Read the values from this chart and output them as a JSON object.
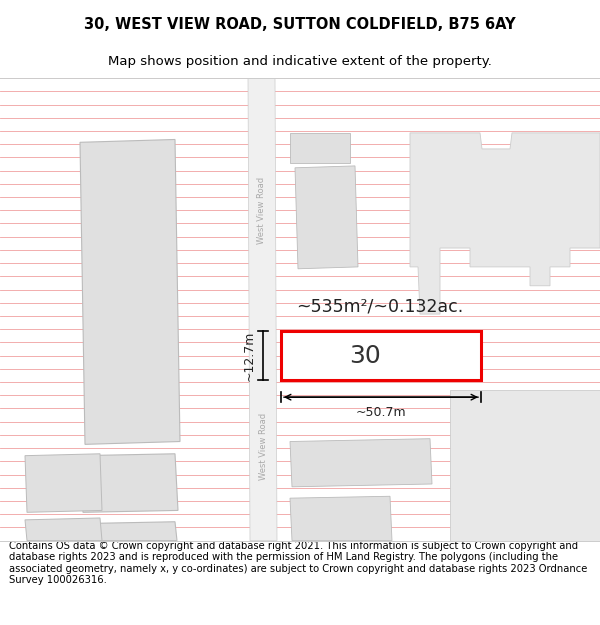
{
  "title_line1": "30, WEST VIEW ROAD, SUTTON COLDFIELD, B75 6AY",
  "title_line2": "Map shows position and indicative extent of the property.",
  "footer_text": "Contains OS data © Crown copyright and database right 2021. This information is subject to Crown copyright and database rights 2023 and is reproduced with the permission of HM Land Registry. The polygons (including the associated geometry, namely x, y co-ordinates) are subject to Crown copyright and database rights 2023 Ordnance Survey 100026316.",
  "bg_color": "#ffffff",
  "line_color": "#f0a0a0",
  "road_fill": "#e8e8e8",
  "building_fill": "#e0e0e0",
  "building_edge": "#bbbbbb",
  "plot_color": "#ee0000",
  "road_label_color": "#aaaaaa",
  "text_dark": "#222222",
  "plot_label": "30",
  "area_label": "~535m²/~0.132ac.",
  "width_label": "~50.7m",
  "height_label": "~12.7m",
  "title_fontsize": 10.5,
  "subtitle_fontsize": 9.5,
  "footer_fontsize": 7.2
}
